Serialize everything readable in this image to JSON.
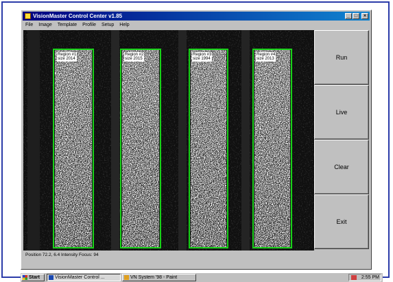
{
  "window": {
    "title": "VisionMaster Control Center v1.85",
    "icon": "app-icon",
    "buttons": [
      "_",
      "□",
      "×"
    ]
  },
  "menu": [
    "File",
    "Image",
    "Template",
    "Profile",
    "Setup",
    "Help"
  ],
  "regions": [
    {
      "name": "Region #1",
      "value": "size 2014"
    },
    {
      "name": "Region #2",
      "value": "size 2015"
    },
    {
      "name": "Region #3",
      "value": "size 1994"
    },
    {
      "name": "Region #4",
      "value": "size 2013"
    }
  ],
  "status": "Position 72.2,  6.4 Intensity  Focus:  94",
  "side_buttons": {
    "run": "Run",
    "live": "Live",
    "clear": "Clear",
    "exit": "Exit"
  },
  "taskbar": {
    "start": "Start",
    "tasks": [
      "VisionMaster Control ...",
      "VN System '98 - Paint"
    ],
    "clock": "2:55 PM"
  },
  "colors": {
    "title_start": "#000080",
    "title_end": "#1084d0",
    "region_box": "#19d219",
    "border": "#2a3aa8"
  }
}
